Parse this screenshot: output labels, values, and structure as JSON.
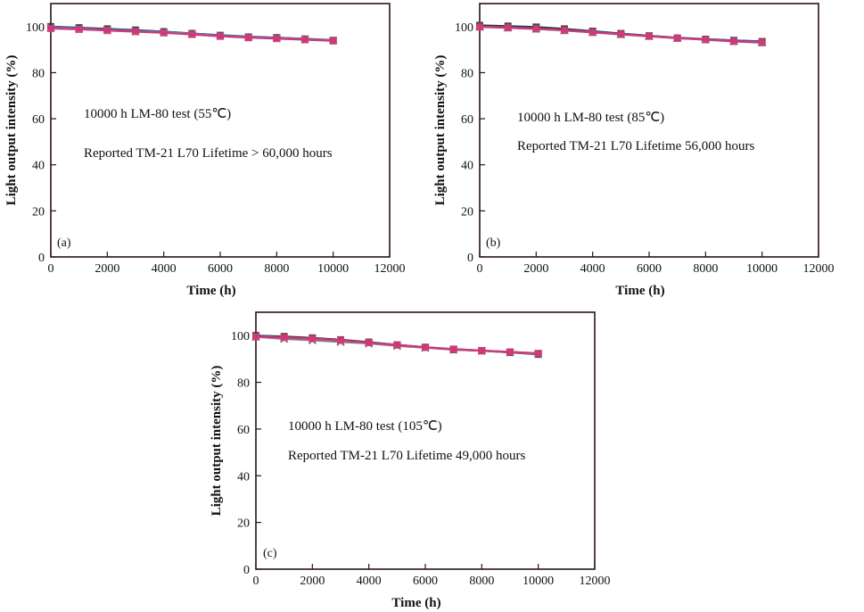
{
  "figure": {
    "background": "#ffffff",
    "frame_color": "#2a1414"
  },
  "chart_data": [
    {
      "type": "line",
      "panel_label": "(a)",
      "xlabel": "Time (h)",
      "ylabel": "Light output intensity (%)",
      "xlim": [
        0,
        12000
      ],
      "ylim": [
        0,
        110
      ],
      "xticks": [
        0,
        2000,
        4000,
        6000,
        8000,
        10000,
        12000
      ],
      "yticks": [
        0,
        20,
        40,
        60,
        80,
        100
      ],
      "annotation_lines": [
        "10000 h LM-80 test (55℃)",
        "Reported TM-21 L70 Lifetime > 60,000 hours"
      ],
      "x": [
        0,
        1000,
        2000,
        3000,
        4000,
        5000,
        6000,
        7000,
        8000,
        9000,
        10000
      ],
      "series": [
        {
          "color": "#2c2c2c",
          "marker": "square",
          "values": [
            100,
            99.5,
            99,
            98.5,
            97.8,
            97,
            96.2,
            95.5,
            95.2,
            94.6,
            94
          ]
        },
        {
          "color": "#3a52b0",
          "marker": "none",
          "values": [
            100,
            99.3,
            98.8,
            98.3,
            97.8,
            97,
            96.3,
            95.7,
            95.2,
            94.7,
            94.2
          ]
        },
        {
          "color": "#7a8a8a",
          "marker": "x",
          "values": [
            99.5,
            99,
            98.5,
            98,
            97.5,
            96.8,
            96,
            95.4,
            95,
            94.5,
            94
          ]
        },
        {
          "color": "#d03878",
          "marker": "square",
          "values": [
            99.2,
            98.8,
            98.3,
            97.8,
            97.3,
            96.6,
            95.8,
            95.2,
            94.8,
            94.3,
            93.8
          ]
        }
      ]
    },
    {
      "type": "line",
      "panel_label": "(b)",
      "xlabel": "Time (h)",
      "ylabel": "Light output intensity (%)",
      "xlim": [
        0,
        12000
      ],
      "ylim": [
        0,
        110
      ],
      "xticks": [
        0,
        2000,
        4000,
        6000,
        8000,
        10000,
        12000
      ],
      "yticks": [
        0,
        20,
        40,
        60,
        80,
        100
      ],
      "annotation_lines": [
        "10000 h LM-80 test (85℃)",
        "Reported TM-21 L70 Lifetime 56,000 hours"
      ],
      "x": [
        0,
        1000,
        2000,
        3000,
        4000,
        5000,
        6000,
        7000,
        8000,
        9000,
        10000
      ],
      "series": [
        {
          "color": "#2c2c2c",
          "marker": "square",
          "values": [
            100.5,
            100.2,
            99.8,
            99,
            98,
            97,
            96,
            95,
            94.5,
            94,
            93.5
          ]
        },
        {
          "color": "#3a52b0",
          "marker": "none",
          "values": [
            100,
            99.8,
            99.3,
            98.6,
            97.8,
            96.9,
            96,
            95.2,
            94.6,
            94,
            93.6
          ]
        },
        {
          "color": "#6a8a7a",
          "marker": "triangle",
          "values": [
            100,
            99.5,
            99,
            98.3,
            97.5,
            96.6,
            95.8,
            95,
            94.4,
            93.6,
            93
          ]
        },
        {
          "color": "#d03878",
          "marker": "square",
          "values": [
            99.8,
            99.5,
            99,
            98.4,
            97.5,
            96.7,
            95.8,
            95,
            94.3,
            93.6,
            93.2
          ]
        }
      ]
    },
    {
      "type": "line",
      "panel_label": "(c)",
      "xlabel": "Time (h)",
      "ylabel": "Light output intensity (%)",
      "xlim": [
        0,
        12000
      ],
      "ylim": [
        0,
        110
      ],
      "xticks": [
        0,
        2000,
        4000,
        6000,
        8000,
        10000,
        12000
      ],
      "yticks": [
        0,
        20,
        40,
        60,
        80,
        100
      ],
      "annotation_lines": [
        "10000 h LM-80 test (105℃)",
        "Reported TM-21 L70 Lifetime 49,000 hours"
      ],
      "x": [
        0,
        1000,
        2000,
        3000,
        4000,
        5000,
        6000,
        7000,
        8000,
        9000,
        10000
      ],
      "series": [
        {
          "color": "#2c2c2c",
          "marker": "square",
          "values": [
            100,
            99.6,
            99,
            98.2,
            97.2,
            96,
            95,
            94,
            93.5,
            92.8,
            92
          ]
        },
        {
          "color": "#3a52b0",
          "marker": "none",
          "values": [
            100,
            99.2,
            98.5,
            97.8,
            97,
            96,
            95,
            94.2,
            93.6,
            93,
            92.4
          ]
        },
        {
          "color": "#8a7a8a",
          "marker": "x",
          "values": [
            99.5,
            98.6,
            98,
            97.3,
            96.6,
            95.6,
            94.8,
            94,
            93.5,
            92.8,
            92.2
          ]
        },
        {
          "color": "#d03878",
          "marker": "square",
          "values": [
            99.5,
            99.2,
            98.7,
            98,
            97,
            96,
            95,
            94.2,
            93.6,
            93,
            92.4
          ]
        }
      ]
    }
  ]
}
